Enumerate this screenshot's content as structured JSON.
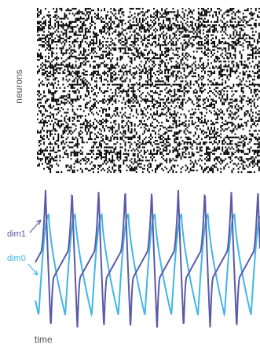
{
  "chart_data": [
    {
      "type": "raster",
      "ylabel": "neurons",
      "xlabel": "",
      "grid": false,
      "legend": "none",
      "n_neurons": 100,
      "n_timebins": 140,
      "spike_probability": 0.35,
      "colors": {
        "spike": "#000000",
        "background": "#ffffff"
      }
    },
    {
      "type": "line",
      "xlabel": "time",
      "ylabel": "",
      "grid": false,
      "legend": "left",
      "cycles": 7,
      "series": [
        {
          "name": "dim1",
          "color": "#5a5aa8",
          "amplitude": [
            -1,
            1
          ],
          "description_shape": "sharp relaxation spikes: steep rise to peak, sharp drop to trough, slow recovery"
        },
        {
          "name": "dim0",
          "color": "#41b6e6",
          "amplitude": [
            -0.6,
            0.6
          ],
          "description_shape": "rounded sawtooth: quick rise to rounded peak, gradual decay"
        }
      ]
    }
  ]
}
